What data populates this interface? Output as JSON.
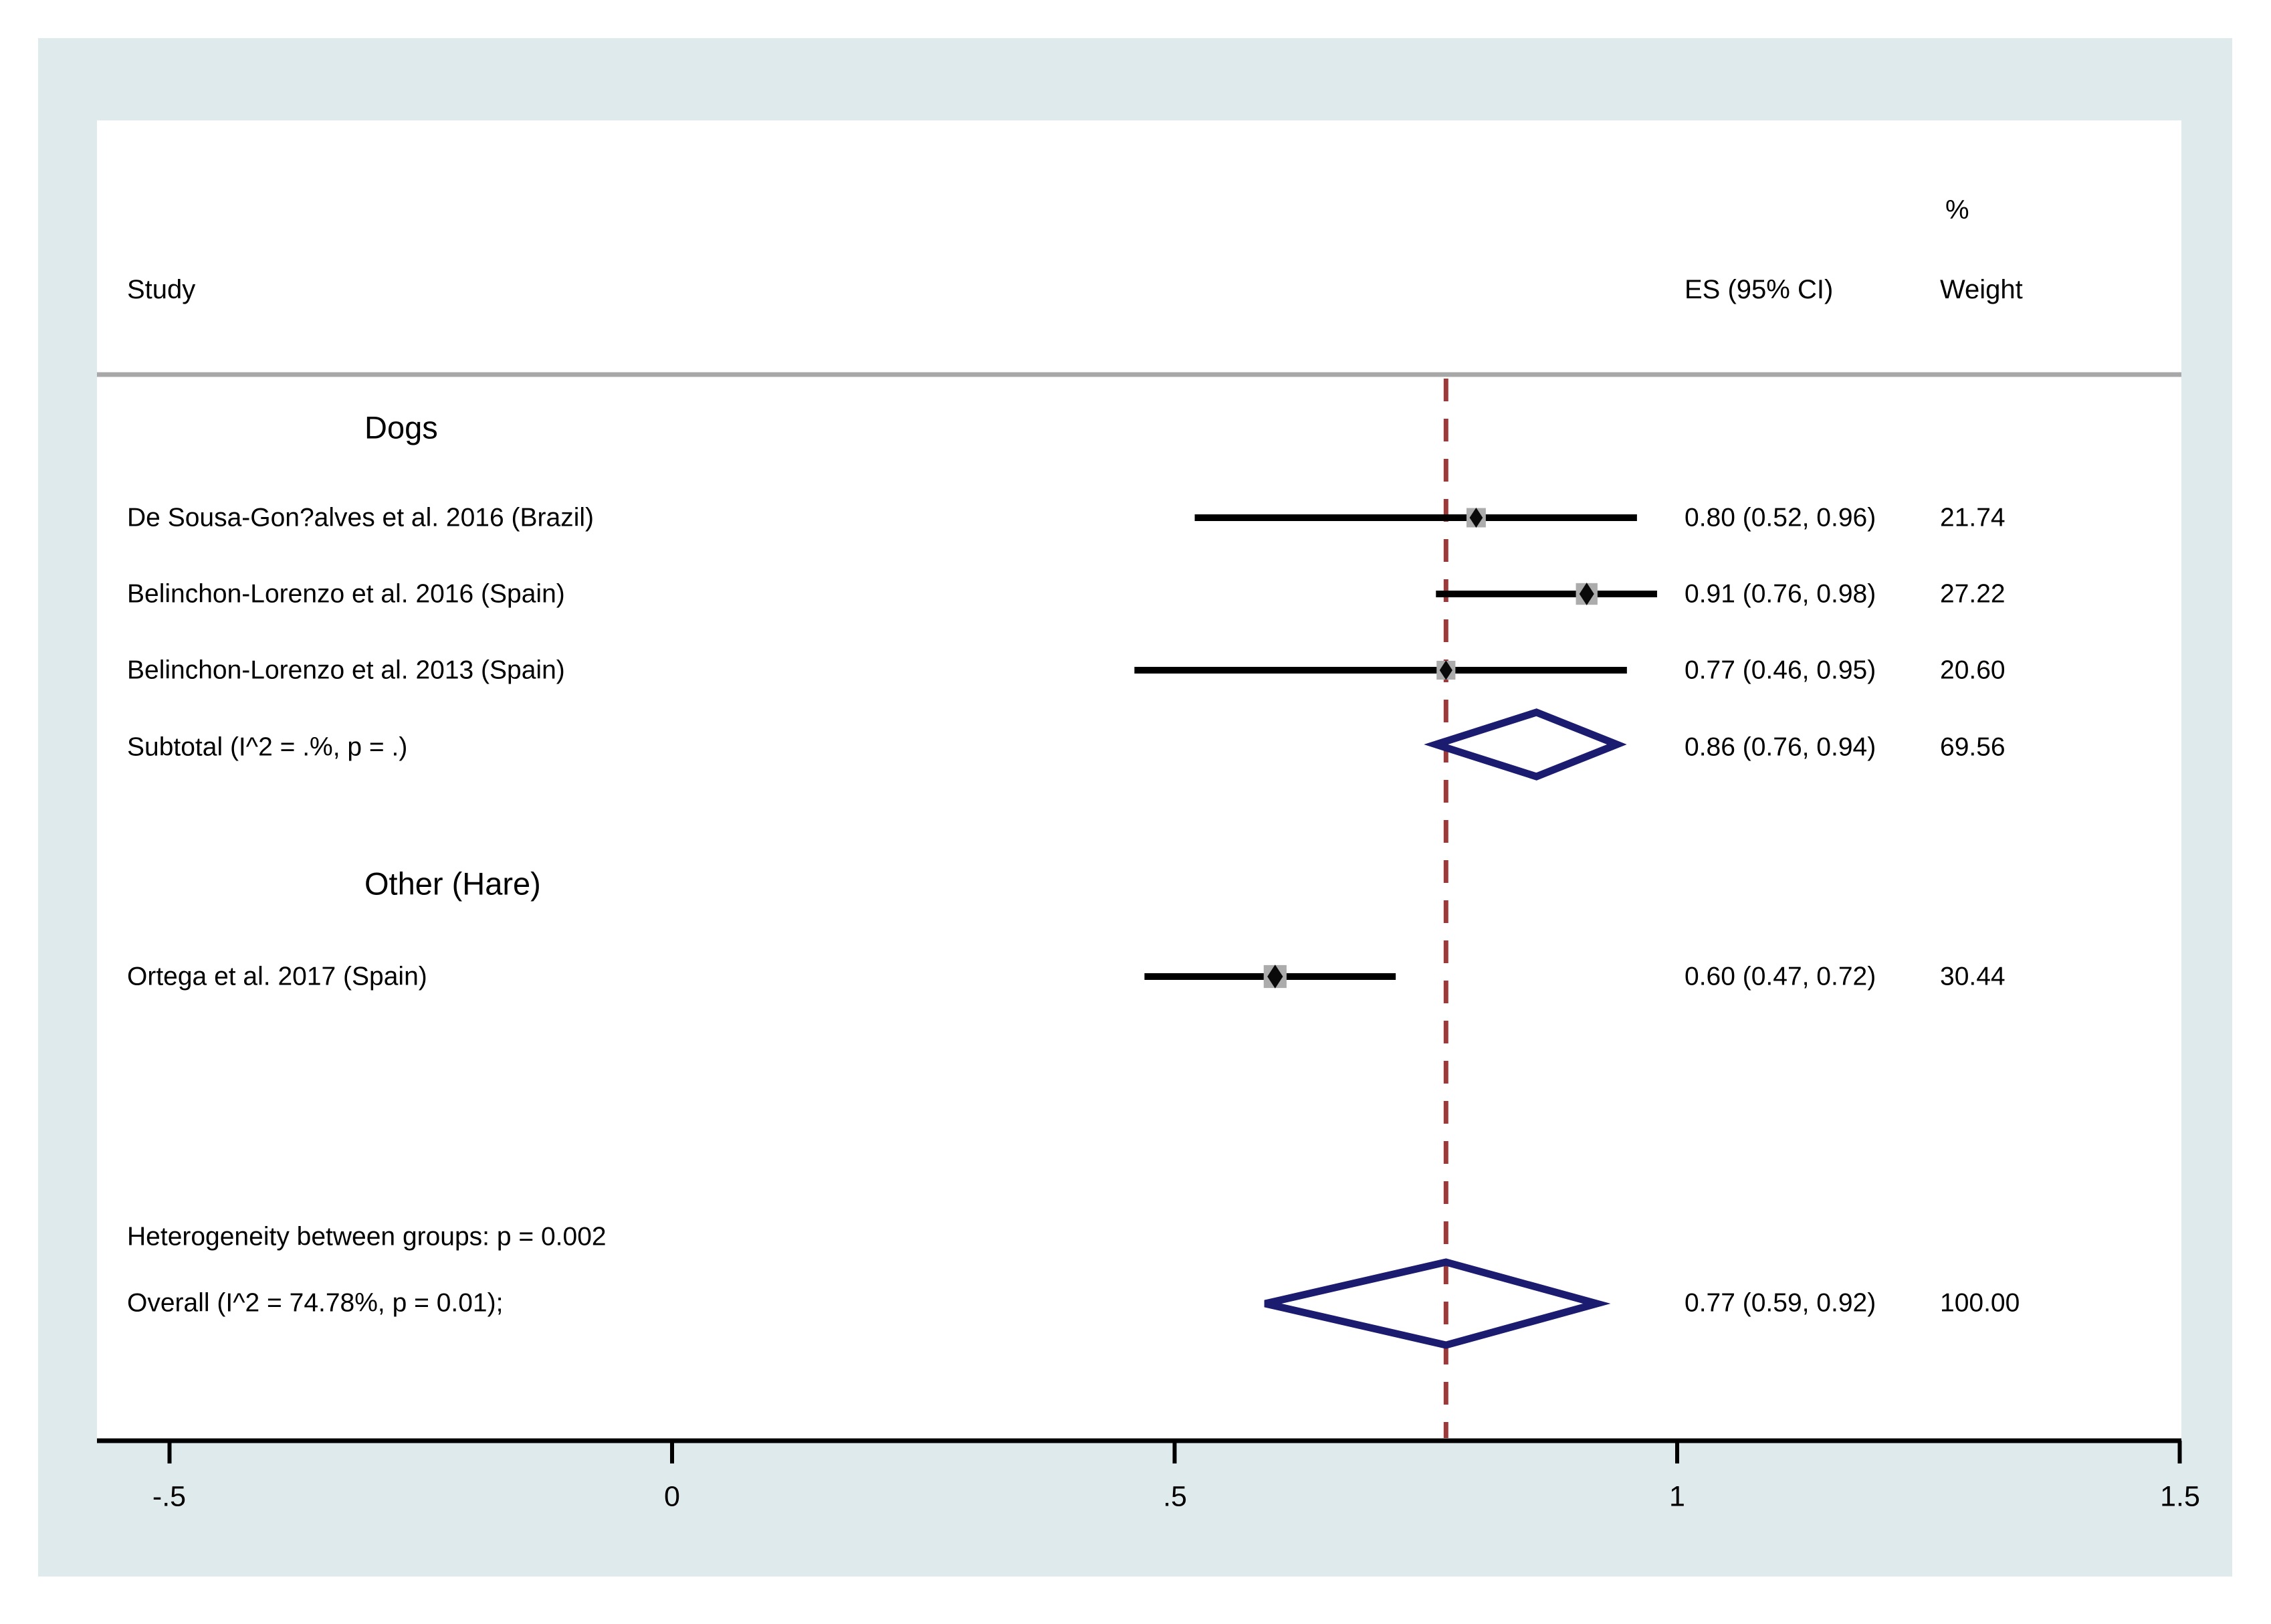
{
  "chart_data": {
    "type": "forest",
    "title": "",
    "columns": {
      "study": "Study",
      "es_ci": "ES (95% CI)",
      "percent": "%",
      "weight": "Weight"
    },
    "x_axis": {
      "range": [
        -0.5,
        1.5
      ],
      "ref_value": 0.77,
      "ticks": [
        {
          "v": -0.5,
          "label": "-.5"
        },
        {
          "v": 0,
          "label": "0"
        },
        {
          "v": 0.5,
          "label": ".5"
        },
        {
          "v": 1,
          "label": "1"
        },
        {
          "v": 1.5,
          "label": "1.5"
        }
      ]
    },
    "groups": [
      {
        "label": "Dogs",
        "studies": [
          {
            "label": "De Sousa-Gon?alves et al. 2016 (Brazil)",
            "es": 0.8,
            "ci_low": 0.52,
            "ci_high": 0.96,
            "weight": 21.74,
            "es_ci_text": "0.80 (0.52, 0.96)",
            "weight_text": "21.74"
          },
          {
            "label": "Belinchon-Lorenzo et al. 2016 (Spain)",
            "es": 0.91,
            "ci_low": 0.76,
            "ci_high": 0.98,
            "weight": 27.22,
            "es_ci_text": "0.91 (0.76, 0.98)",
            "weight_text": "27.22"
          },
          {
            "label": "Belinchon-Lorenzo et al. 2013 (Spain)",
            "es": 0.77,
            "ci_low": 0.46,
            "ci_high": 0.95,
            "weight": 20.6,
            "es_ci_text": "0.77 (0.46, 0.95)",
            "weight_text": "20.60"
          }
        ],
        "subtotal": {
          "label": "Subtotal  (I^2 = .%, p = .)",
          "es": 0.86,
          "ci_low": 0.76,
          "ci_high": 0.94,
          "weight": 69.56,
          "es_ci_text": "0.86 (0.76, 0.94)",
          "weight_text": "69.56"
        }
      },
      {
        "label": "Other (Hare)",
        "studies": [
          {
            "label": "Ortega et al. 2017 (Spain)",
            "es": 0.6,
            "ci_low": 0.47,
            "ci_high": 0.72,
            "weight": 30.44,
            "es_ci_text": "0.60 (0.47, 0.72)",
            "weight_text": "30.44"
          }
        ]
      }
    ],
    "heterogeneity_note": "Heterogeneity between groups: p = 0.002",
    "overall": {
      "label": "Overall  (I^2 = 74.78%, p = 0.01);",
      "es": 0.77,
      "ci_low": 0.59,
      "ci_high": 0.92,
      "weight": 100.0,
      "es_ci_text": "0.77 (0.59, 0.92)",
      "weight_text": "100.00"
    },
    "colors": {
      "frame_blue": "#dfeaed",
      "diamond_navy": "#1b1b70",
      "ref_line_red": "#9c3a3a",
      "marker_gray": "#acacac",
      "divider_gray": "#a8a8a8",
      "ci_black": "#000000"
    },
    "legend_position": "none",
    "grid": false
  }
}
